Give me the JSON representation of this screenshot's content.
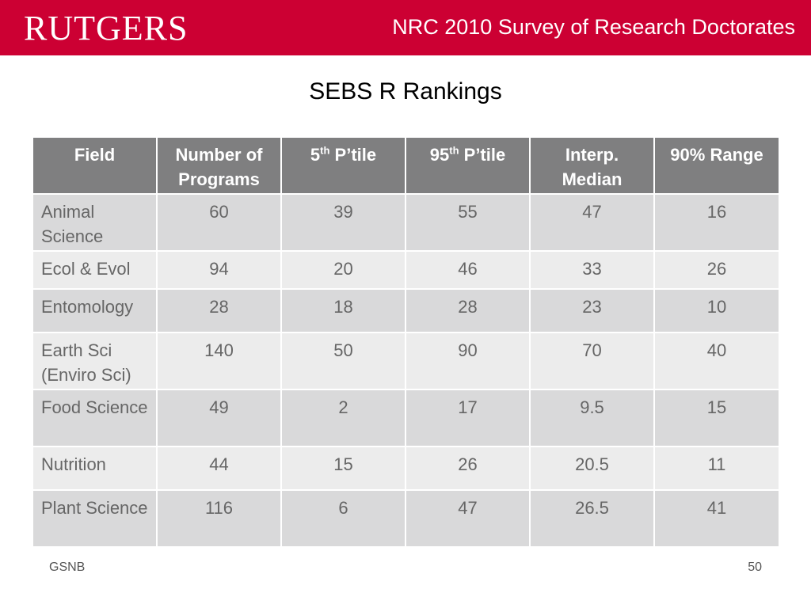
{
  "header": {
    "logo_text": "RUTGERS",
    "title": "NRC 2010 Survey of Research Doctorates",
    "accent_color": "#cc0033"
  },
  "slide_title": "SEBS R Rankings",
  "table": {
    "columns": [
      {
        "label": "Field"
      },
      {
        "label": "Number of Programs"
      },
      {
        "label_prefix": "5",
        "label_sup": "th",
        "label_suffix": " P’tile"
      },
      {
        "label_prefix": "95",
        "label_sup": "th",
        "label_suffix": " P’tile"
      },
      {
        "label": "Interp. Median"
      },
      {
        "label": "90% Range"
      }
    ],
    "rows": [
      {
        "field": "Animal Science",
        "programs": "60",
        "p5": "39",
        "p95": "55",
        "median": "47",
        "range": "16"
      },
      {
        "field": "Ecol & Evol",
        "programs": "94",
        "p5": "20",
        "p95": "46",
        "median": "33",
        "range": "26"
      },
      {
        "field": "Entomology",
        "programs": "28",
        "p5": "18",
        "p95": "28",
        "median": "23",
        "range": "10"
      },
      {
        "field": "Earth Sci (Enviro Sci)",
        "programs": "140",
        "p5": "50",
        "p95": "90",
        "median": "70",
        "range": "40"
      },
      {
        "field": "Food Science",
        "programs": "49",
        "p5": "2",
        "p95": "17",
        "median": "9.5",
        "range": "15"
      },
      {
        "field": "Nutrition",
        "programs": "44",
        "p5": "15",
        "p95": "26",
        "median": "20.5",
        "range": "11"
      },
      {
        "field": "Plant Science",
        "programs": "116",
        "p5": "6",
        "p95": "47",
        "median": "26.5",
        "range": "41"
      }
    ]
  },
  "footer": {
    "left": "GSNB",
    "page_number": "50"
  }
}
